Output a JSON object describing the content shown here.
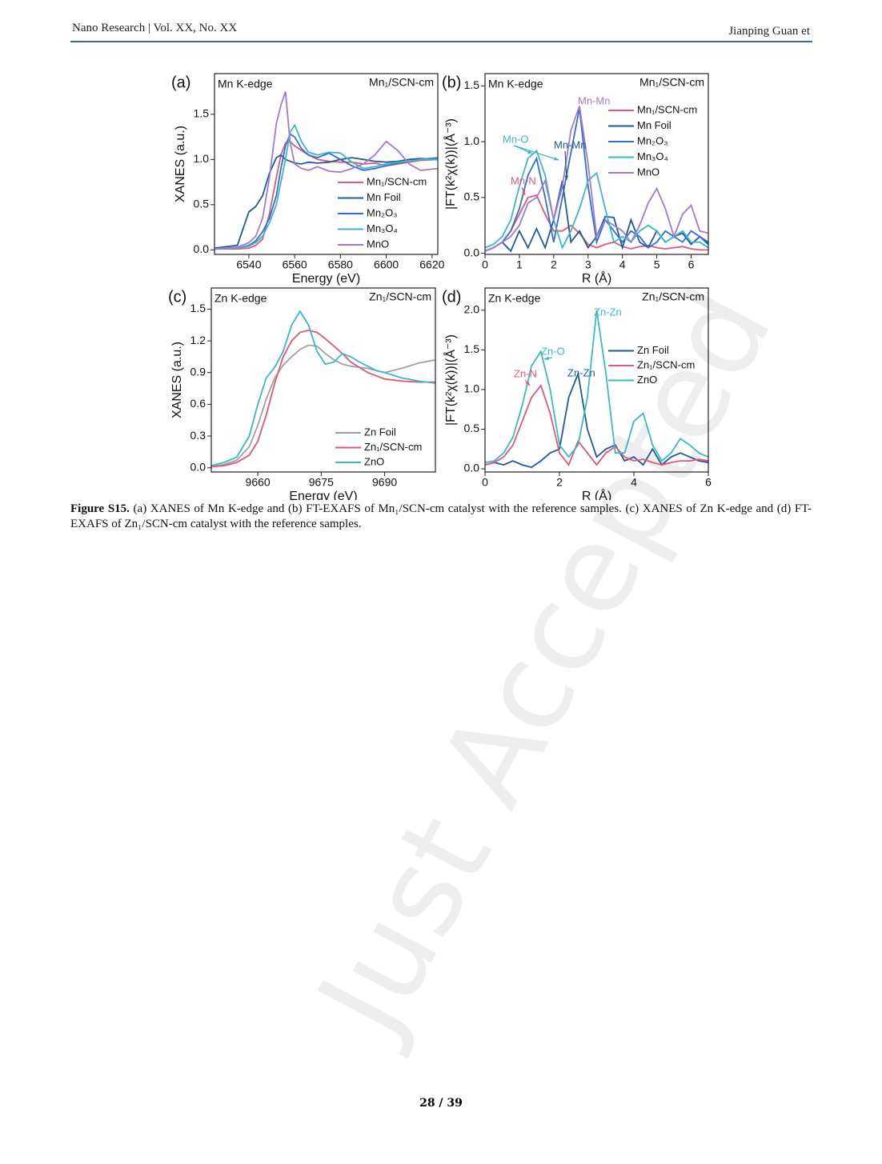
{
  "header": {
    "journal": "Nano Research | Vol. XX, No. XX",
    "author": "Jianping Guan et"
  },
  "watermark": "Just Accepted",
  "chart_data": [
    {
      "type": "line",
      "panel": "(a)",
      "title": "Mn K-edge",
      "subtitle": "Mn₁/SCN-cm",
      "xlabel": "Energy (eV)",
      "ylabel": "XANES (a.u.)",
      "x": [
        6525,
        6535,
        6540,
        6543,
        6546,
        6549,
        6552,
        6554,
        6556,
        6558,
        6560,
        6563,
        6566,
        6570,
        6575,
        6580,
        6585,
        6590,
        6595,
        6600,
        6605,
        6610,
        6615,
        6622.5
      ],
      "series": [
        {
          "name": "Mn₁/SCN-cm",
          "color": "#e0577a",
          "values": [
            0.01,
            0.01,
            0.02,
            0.05,
            0.12,
            0.4,
            0.8,
            1.05,
            1.18,
            1.2,
            1.15,
            1.1,
            1.05,
            1.0,
            0.98,
            0.97,
            0.97,
            0.95,
            0.96,
            0.93,
            0.95,
            0.97,
            0.99,
            1.0
          ]
        },
        {
          "name": "Mn Foil",
          "color": "#1f5a99",
          "values": [
            0.02,
            0.05,
            0.42,
            0.48,
            0.6,
            0.85,
            1.02,
            1.05,
            1.0,
            0.98,
            0.96,
            0.95,
            0.97,
            0.96,
            0.97,
            1.0,
            1.02,
            1.0,
            0.98,
            0.97,
            0.98,
            1.0,
            1.01,
            1.0
          ]
        },
        {
          "name": "Mn₂O₃",
          "color": "#2f6fd1",
          "values": [
            0.01,
            0.02,
            0.05,
            0.1,
            0.2,
            0.35,
            0.6,
            0.9,
            1.15,
            1.28,
            1.25,
            1.12,
            1.05,
            1.02,
            1.07,
            1.0,
            0.93,
            0.88,
            0.9,
            0.93,
            0.96,
            0.98,
            1.0,
            1.02
          ]
        },
        {
          "name": "Mn₃O₄",
          "color": "#3bb8c4",
          "values": [
            0.01,
            0.02,
            0.04,
            0.08,
            0.15,
            0.3,
            0.5,
            0.75,
            1.0,
            1.3,
            1.38,
            1.2,
            1.08,
            1.05,
            1.08,
            1.07,
            0.97,
            0.9,
            0.92,
            0.95,
            0.97,
            0.98,
            1.0,
            1.0
          ]
        },
        {
          "name": "MnO",
          "color": "#a27ad0",
          "values": [
            0.01,
            0.03,
            0.08,
            0.15,
            0.35,
            0.8,
            1.4,
            1.6,
            1.75,
            1.2,
            0.95,
            0.9,
            0.88,
            0.92,
            0.87,
            0.86,
            0.9,
            0.95,
            1.05,
            1.2,
            1.1,
            0.95,
            0.88,
            0.9
          ]
        }
      ],
      "xlim": [
        6525,
        6622.5
      ],
      "ylim": [
        -0.05,
        1.95
      ],
      "xticks": [
        6540,
        6560,
        6580,
        6600,
        6620
      ],
      "yticks": [
        {
          "value": 0,
          "label": "0.0"
        },
        0.5,
        {
          "value": 1,
          "label": "1.0"
        },
        1.5
      ],
      "legend": "lower right",
      "annotations": []
    },
    {
      "type": "line",
      "panel": "(b)",
      "title": "Mn K-edge",
      "subtitle": "Mn₁/SCN-cm",
      "xlabel": "R (Å)",
      "ylabel": "|FT(k²χ(k))|(Å⁻³)",
      "x": [
        0,
        0.25,
        0.5,
        0.75,
        1,
        1.25,
        1.5,
        1.75,
        2,
        2.25,
        2.5,
        2.75,
        3,
        3.25,
        3.5,
        3.75,
        4,
        4.25,
        4.5,
        4.75,
        5,
        5.25,
        5.5,
        5.75,
        6,
        6.25,
        6.5
      ],
      "series": [
        {
          "name": "Mn₁/SCN-cm",
          "color": "#e0577a",
          "values": [
            0.02,
            0.05,
            0.1,
            0.2,
            0.35,
            0.5,
            0.52,
            0.35,
            0.2,
            0.2,
            0.25,
            0.18,
            0.08,
            0.05,
            0.08,
            0.1,
            0.06,
            0.04,
            0.06,
            0.07,
            0.05,
            0.04,
            0.05,
            0.06,
            0.04,
            0.03,
            0.03
          ]
        },
        {
          "name": "Mn Foil",
          "color": "#1f5a99",
          "values": [
            0.02,
            0.05,
            0.1,
            0.02,
            0.2,
            0.05,
            0.22,
            0.05,
            0.3,
            0.65,
            0.1,
            0.2,
            0.05,
            0.15,
            0.33,
            0.32,
            0.05,
            0.3,
            0.1,
            0.05,
            0.2,
            0.1,
            0.15,
            0.18,
            0.08,
            0.15,
            0.08
          ]
        },
        {
          "name": "Mn₂O₃",
          "color": "#2f6fd1",
          "values": [
            0.02,
            0.05,
            0.1,
            0.2,
            0.4,
            0.7,
            0.85,
            0.5,
            0.1,
            0.5,
            0.9,
            1.3,
            0.6,
            0.1,
            0.3,
            0.2,
            0.1,
            0.2,
            0.15,
            0.05,
            0.1,
            0.2,
            0.15,
            0.1,
            0.2,
            0.15,
            0.1
          ]
        },
        {
          "name": "Mn₃O₄",
          "color": "#3bb8c4",
          "values": [
            0.05,
            0.08,
            0.15,
            0.3,
            0.6,
            0.85,
            0.92,
            0.7,
            0.3,
            0.05,
            0.2,
            0.4,
            0.65,
            0.72,
            0.4,
            0.1,
            0.15,
            0.1,
            0.2,
            0.25,
            0.2,
            0.1,
            0.15,
            0.2,
            0.1,
            0.1,
            0.05
          ]
        },
        {
          "name": "MnO",
          "color": "#a27ad0",
          "values": [
            0.02,
            0.05,
            0.1,
            0.15,
            0.25,
            0.45,
            0.5,
            0.65,
            0.3,
            0.6,
            1.1,
            1.32,
            0.8,
            0.15,
            0.3,
            0.25,
            0.2,
            0.1,
            0.25,
            0.45,
            0.58,
            0.4,
            0.15,
            0.35,
            0.43,
            0.2,
            0.18
          ]
        }
      ],
      "xlim": [
        0,
        6.5
      ],
      "ylim": [
        -0.01,
        1.61
      ],
      "xticks": [
        0,
        1,
        2,
        3,
        4,
        5,
        6
      ],
      "yticks": [
        {
          "value": 0,
          "label": "0.0"
        },
        0.5,
        {
          "value": 1,
          "label": "1.0"
        },
        1.5
      ],
      "legend": "upper right",
      "annotations": [
        {
          "text": "Mn-Mn",
          "color": "#a27ad0"
        },
        {
          "text": "Mn-O",
          "color": "#3bb8c4"
        },
        {
          "text": "Mn-Mn",
          "color": "#1f5a99"
        },
        {
          "text": "Mn-N",
          "color": "#e0577a"
        }
      ]
    },
    {
      "type": "line",
      "panel": "(c)",
      "title": "Zn K-edge",
      "subtitle": "Zn₁/SCN-cm",
      "xlabel": "Energy (eV)",
      "ylabel": "XANES (a.u.)",
      "x": [
        9649,
        9652,
        9655,
        9658,
        9660,
        9662,
        9664,
        9666,
        9668,
        9670,
        9672,
        9674,
        9676,
        9678,
        9680,
        9682,
        9684,
        9686,
        9688,
        9690,
        9694,
        9698,
        9702
      ],
      "series": [
        {
          "name": "Zn Foil",
          "color": "#a0a0a0",
          "values": [
            0.01,
            0.03,
            0.07,
            0.2,
            0.4,
            0.65,
            0.85,
            0.97,
            1.05,
            1.12,
            1.16,
            1.15,
            1.08,
            1.02,
            0.98,
            0.96,
            0.95,
            0.94,
            0.92,
            0.9,
            0.94,
            0.99,
            1.02
          ]
        },
        {
          "name": "Zn₁/SCN-cm",
          "color": "#e0577a",
          "values": [
            0.01,
            0.02,
            0.05,
            0.12,
            0.25,
            0.5,
            0.8,
            1.05,
            1.2,
            1.28,
            1.3,
            1.28,
            1.22,
            1.15,
            1.08,
            1.0,
            0.95,
            0.9,
            0.87,
            0.84,
            0.82,
            0.81,
            0.81
          ]
        },
        {
          "name": "ZnO",
          "color": "#3bb8c4",
          "values": [
            0.02,
            0.05,
            0.1,
            0.3,
            0.6,
            0.85,
            0.95,
            1.1,
            1.35,
            1.48,
            1.35,
            1.1,
            0.98,
            1.0,
            1.08,
            1.05,
            1.0,
            0.96,
            0.92,
            0.9,
            0.85,
            0.82,
            0.8
          ]
        }
      ],
      "xlim": [
        9649,
        9702
      ],
      "ylim": [
        -0.04,
        1.7
      ],
      "xticks": [
        9660,
        9675,
        9690
      ],
      "yticks": [
        {
          "value": 0,
          "label": "0.0"
        },
        0.3,
        0.6,
        0.9,
        1.2,
        1.5
      ],
      "legend": "lower right",
      "annotations": []
    },
    {
      "type": "line",
      "panel": "(d)",
      "title": "Zn K-edge",
      "subtitle": "Zn₁/SCN-cm",
      "xlabel": "R (Å)",
      "ylabel": "|FT(k²χ(k))|(Å⁻³)",
      "x": [
        0,
        0.25,
        0.5,
        0.75,
        1,
        1.25,
        1.5,
        1.75,
        2,
        2.25,
        2.5,
        2.75,
        3,
        3.25,
        3.5,
        3.75,
        4,
        4.25,
        4.5,
        4.75,
        5,
        5.25,
        5.5,
        5.75,
        6
      ],
      "series": [
        {
          "name": "Zn Foil",
          "color": "#1f5a99",
          "values": [
            0.05,
            0.08,
            0.05,
            0.1,
            0.05,
            0.02,
            0.1,
            0.2,
            0.25,
            0.9,
            1.2,
            0.5,
            0.15,
            0.25,
            0.3,
            0.1,
            0.15,
            0.05,
            0.25,
            0.05,
            0.15,
            0.2,
            0.15,
            0.1,
            0.08
          ]
        },
        {
          "name": "Zn₁/SCN-cm",
          "color": "#e0577a",
          "values": [
            0.05,
            0.08,
            0.15,
            0.3,
            0.6,
            0.9,
            1.05,
            0.7,
            0.2,
            0.05,
            0.35,
            0.2,
            0.05,
            0.2,
            0.28,
            0.15,
            0.1,
            0.12,
            0.08,
            0.05,
            0.08,
            0.1,
            0.1,
            0.12,
            0.1
          ]
        },
        {
          "name": "ZnO",
          "color": "#3bb8c4",
          "values": [
            0.08,
            0.1,
            0.2,
            0.4,
            0.8,
            1.3,
            1.48,
            1.0,
            0.3,
            0.15,
            0.3,
            0.9,
            2.0,
            1.2,
            0.2,
            0.2,
            0.6,
            0.7,
            0.3,
            0.1,
            0.2,
            0.38,
            0.3,
            0.2,
            0.15
          ]
        }
      ],
      "xlim": [
        0,
        6
      ],
      "ylim": [
        -0.04,
        2.28
      ],
      "xticks": [
        0,
        2,
        4,
        6
      ],
      "yticks": [
        {
          "value": 0,
          "label": "0.0"
        },
        0.5,
        {
          "value": 1,
          "label": "1.0"
        },
        1.5,
        {
          "value": 2,
          "label": "2.0"
        }
      ],
      "legend": "center right",
      "annotations": [
        {
          "text": "Zn-Zn",
          "color": "#3bb8c4"
        },
        {
          "text": "Zn-O",
          "color": "#3bb8c4"
        },
        {
          "text": "Zn-Zn",
          "color": "#1f5a99"
        },
        {
          "text": "Zn-N",
          "color": "#e0577a"
        }
      ]
    }
  ],
  "caption": {
    "label": "Figure S15.",
    "text": "(a) XANES of Mn K-edge and (b) FT-EXAFS of Mn₁/SCN-cm catalyst with the reference samples. (c) XANES of Zn K-edge and (d) FT-EXAFS of Zn₁/SCN-cm catalyst with the reference samples."
  },
  "footer": {
    "page": "28 / 39"
  }
}
